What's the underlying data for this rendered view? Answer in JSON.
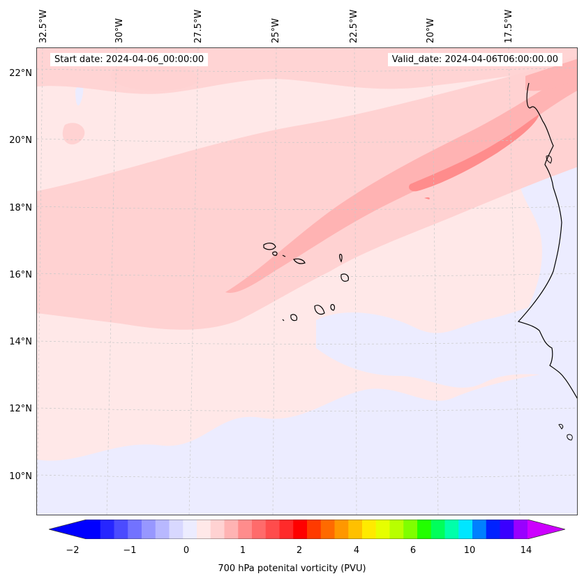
{
  "map": {
    "start_date": "Start date: 2024-04-06_00:00:00",
    "valid_date": "Valid_date: 2024-04-06T06:00:00.00",
    "lon_labels": [
      "32.5°W",
      "30°W",
      "27.5°W",
      "25°W",
      "22.5°W",
      "20°W",
      "17.5°W"
    ],
    "lat_labels": [
      "22°N",
      "20°N",
      "18°N",
      "16°N",
      "14°N",
      "12°N",
      "10°N"
    ],
    "colors": {
      "background": "#ffe8e8",
      "pv_low": "#ececff",
      "pv_mid": "#ffd2d2",
      "pv_high": "#ffb3b3",
      "pv_max": "#ff8c8c",
      "coast": "#000000"
    }
  },
  "colorbar": {
    "title": "700 hPa potenital vorticity (PVU)",
    "tick_labels": [
      "−2",
      "−1",
      "0",
      "1",
      "2",
      "4",
      "6",
      "10",
      "14"
    ],
    "colors": [
      "#0000ff",
      "#2626ff",
      "#4b4bff",
      "#7272ff",
      "#9797ff",
      "#b8b8ff",
      "#d8d8ff",
      "#ececff",
      "#ffe8e8",
      "#ffd2d2",
      "#ffb3b3",
      "#ff8c8c",
      "#ff6b6b",
      "#ff4c4c",
      "#ff2a2a",
      "#ff0000",
      "#ff3a00",
      "#ff6a00",
      "#ff9700",
      "#ffc000",
      "#ffea00",
      "#e6ff00",
      "#b8ff00",
      "#7fff00",
      "#22ff00",
      "#00ff5a",
      "#00ffaa",
      "#00e6ff",
      "#0080ff",
      "#0022ff",
      "#3a00ff",
      "#9900ff"
    ],
    "under_color": "#0000ff",
    "over_color": "#cc00ff"
  }
}
